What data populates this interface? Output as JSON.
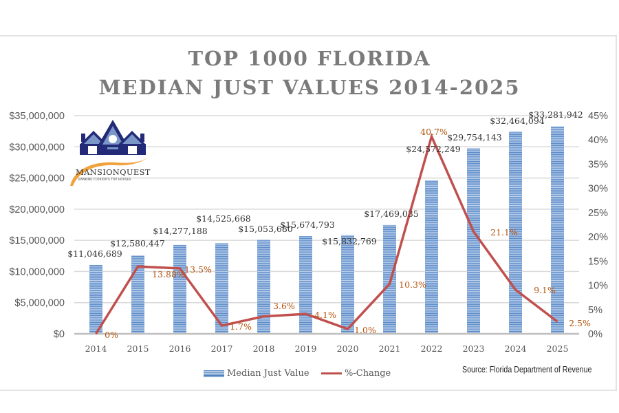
{
  "chart_data": {
    "type": "bar+line",
    "title": [
      "TOP 1000 FLORIDA",
      "MEDIAN JUST VALUES 2014-2025"
    ],
    "categories": [
      "2014",
      "2015",
      "2016",
      "2017",
      "2018",
      "2019",
      "2020",
      "2021",
      "2022",
      "2023",
      "2024",
      "2025"
    ],
    "series": [
      {
        "name": "Median Just Value",
        "type": "bar",
        "axis": "left",
        "color": "#4f81bd",
        "values": [
          11046689,
          12580447,
          14277188,
          14525668,
          15053680,
          15674793,
          15832769,
          17469035,
          24572249,
          29754143,
          32464094,
          33281942
        ],
        "labels": [
          "$11,046,689",
          "$12,580,447",
          "$14,277,188",
          "$14,525,668",
          "$15,053,680",
          "$15,674,793",
          "$15,832,769",
          "$17,469,035",
          "$24,572,249",
          "$29,754,143",
          "$32,464,094",
          "$33,281,942"
        ]
      },
      {
        "name": "%-Change",
        "type": "line",
        "axis": "right",
        "color": "#c0504d",
        "values": [
          0,
          13.88,
          13.5,
          1.7,
          3.6,
          4.1,
          1.0,
          10.3,
          40.7,
          21.1,
          9.1,
          2.5
        ],
        "labels": [
          "0%",
          "13.88%",
          "13.5%",
          "1.7%",
          "3.6%",
          "4.1%",
          "1.0%",
          "10.3%",
          "40.7%",
          "21.1%",
          "9.1%",
          "2.5%"
        ]
      }
    ],
    "left_axis": {
      "ylim": [
        0,
        35000000
      ],
      "ticks": [
        "$0",
        "$5,000,000",
        "$10,000,000",
        "$15,000,000",
        "$20,000,000",
        "$25,000,000",
        "$30,000,000",
        "$35,000,000"
      ]
    },
    "right_axis": {
      "ylim": [
        0,
        45
      ],
      "ticks": [
        "0%",
        "5%",
        "10%",
        "15%",
        "20%",
        "25%",
        "30%",
        "35%",
        "40%",
        "45%"
      ]
    },
    "xlabel": "",
    "ylabel": "",
    "grid": true,
    "legend": {
      "position": "bottom",
      "entries": [
        "Median Just Value",
        "%-Change"
      ]
    },
    "source": "Source: Florida Department of Revenue",
    "label_color": "#b5530b"
  },
  "logo": {
    "name": "MANSIONQUEST",
    "tagline": "BANKING FLORIDA'S TOP HOUSES"
  }
}
